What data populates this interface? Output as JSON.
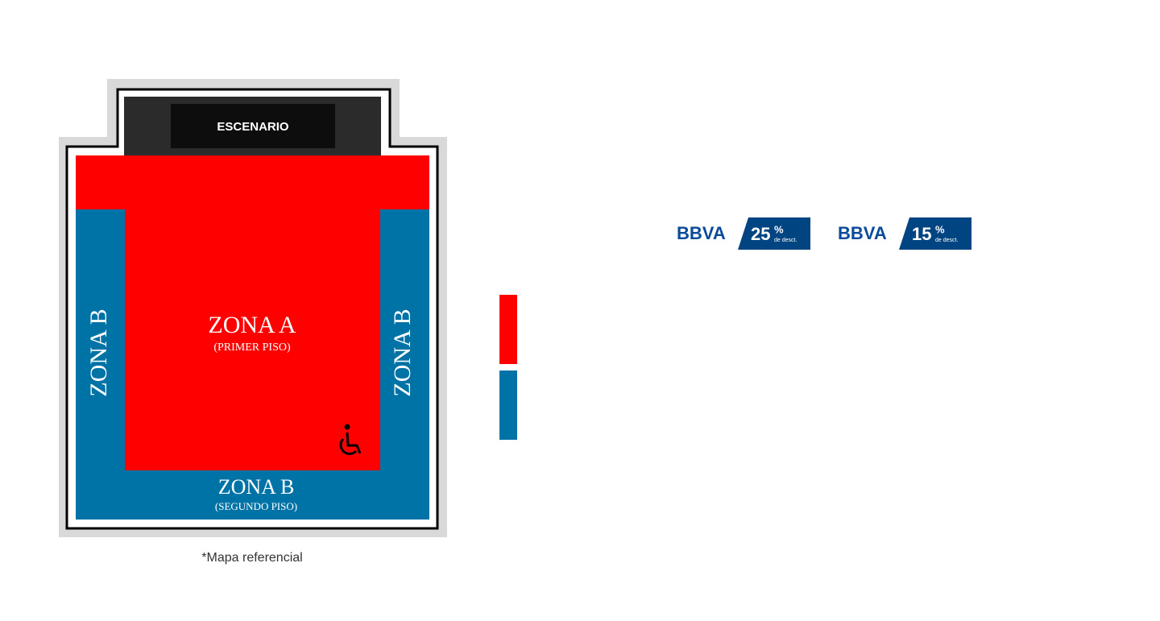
{
  "map": {
    "stage": "ESCENARIO",
    "zone_a": {
      "name": "ZONA A",
      "floor": "(PRIMER PISO)"
    },
    "zone_b_left": "ZONA B",
    "zone_b_right": "ZONA B",
    "zone_b": {
      "name": "ZONA B",
      "floor": "(SEGUNDO PISO)"
    },
    "footnote": "*Mapa referencial"
  },
  "promotions": [
    {
      "brand": "BBVA",
      "discount": "25",
      "unit": "%",
      "note": "de desct."
    },
    {
      "brand": "BBVA",
      "discount": "15",
      "unit": "%",
      "note": "de desct."
    }
  ]
}
